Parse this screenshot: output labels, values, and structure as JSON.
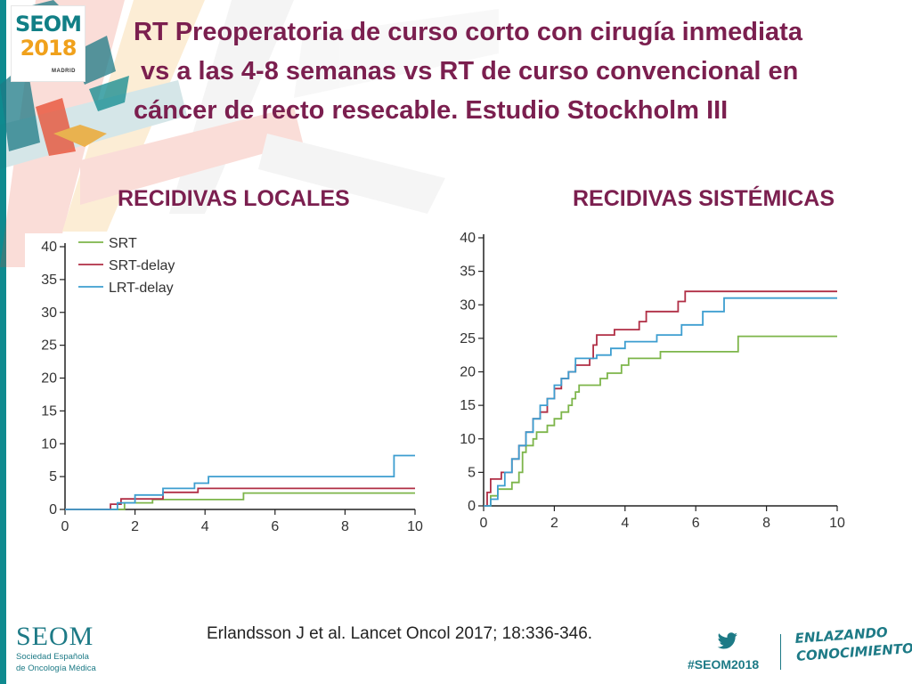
{
  "logo": {
    "name": "SEOM",
    "year": "2018",
    "city": "MADRID"
  },
  "title": {
    "line1": "RT Preoperatoria de curso corto con cirugía inmediata",
    "line2": " vs a las 4-8 semanas vs RT de curso convencional en",
    "line3": "cáncer de recto resecable. Estudio Stockholm III"
  },
  "headings": {
    "left": "RECIDIVAS LOCALES",
    "right": "RECIDIVAS SISTÉMICAS"
  },
  "colors": {
    "SRT": "#7db54a",
    "SRT-delay": "#b02e45",
    "LRT-delay": "#3d9ed0"
  },
  "chart_data": [
    {
      "type": "line",
      "title": "RECIDIVAS LOCALES",
      "xlabel": "",
      "ylabel": "",
      "xlim": [
        0,
        10
      ],
      "ylim": [
        0,
        40
      ],
      "x_ticks": [
        0,
        2,
        4,
        6,
        8,
        10
      ],
      "y_ticks": [
        0,
        5,
        10,
        15,
        20,
        25,
        30,
        35,
        40
      ],
      "legend": "top-left",
      "grid": false,
      "series": [
        {
          "name": "SRT",
          "color": "#7db54a",
          "points": [
            [
              0,
              0
            ],
            [
              1.7,
              0
            ],
            [
              1.7,
              1
            ],
            [
              2.5,
              1
            ],
            [
              2.5,
              1.5
            ],
            [
              5.1,
              1.5
            ],
            [
              5.1,
              2.5
            ],
            [
              10,
              2.5
            ]
          ]
        },
        {
          "name": "SRT-delay",
          "color": "#b02e45",
          "points": [
            [
              0,
              0
            ],
            [
              1.3,
              0
            ],
            [
              1.3,
              0.8
            ],
            [
              1.6,
              0.8
            ],
            [
              1.6,
              1.6
            ],
            [
              2.8,
              1.6
            ],
            [
              2.8,
              2.6
            ],
            [
              3.8,
              2.6
            ],
            [
              3.8,
              3.2
            ],
            [
              10,
              3.2
            ]
          ]
        },
        {
          "name": "LRT-delay",
          "color": "#3d9ed0",
          "points": [
            [
              0,
              0
            ],
            [
              1.5,
              0
            ],
            [
              1.5,
              1
            ],
            [
              2.0,
              1
            ],
            [
              2.0,
              2.2
            ],
            [
              2.8,
              2.2
            ],
            [
              2.8,
              3.2
            ],
            [
              3.7,
              3.2
            ],
            [
              3.7,
              4.0
            ],
            [
              4.1,
              4.0
            ],
            [
              4.1,
              5.0
            ],
            [
              9.4,
              5.0
            ],
            [
              9.4,
              8.2
            ],
            [
              10,
              8.2
            ]
          ]
        }
      ]
    },
    {
      "type": "line",
      "title": "RECIDIVAS SISTÉMICAS",
      "xlabel": "",
      "ylabel": "",
      "xlim": [
        0,
        10
      ],
      "ylim": [
        0,
        40
      ],
      "x_ticks": [
        0,
        2,
        4,
        6,
        8,
        10
      ],
      "y_ticks": [
        0,
        5,
        10,
        15,
        20,
        25,
        30,
        35,
        40
      ],
      "grid": false,
      "series": [
        {
          "name": "SRT",
          "color": "#7db54a",
          "points": [
            [
              0,
              0
            ],
            [
              0.2,
              0
            ],
            [
              0.2,
              1.5
            ],
            [
              0.4,
              1.5
            ],
            [
              0.4,
              2.5
            ],
            [
              0.8,
              2.5
            ],
            [
              0.8,
              3.5
            ],
            [
              1.0,
              3.5
            ],
            [
              1.0,
              5
            ],
            [
              1.1,
              5
            ],
            [
              1.1,
              8
            ],
            [
              1.2,
              8
            ],
            [
              1.2,
              9
            ],
            [
              1.4,
              9
            ],
            [
              1.4,
              10
            ],
            [
              1.5,
              10
            ],
            [
              1.5,
              11
            ],
            [
              1.8,
              11
            ],
            [
              1.8,
              12
            ],
            [
              2.0,
              12
            ],
            [
              2.0,
              13
            ],
            [
              2.2,
              13
            ],
            [
              2.2,
              14
            ],
            [
              2.4,
              14
            ],
            [
              2.4,
              15
            ],
            [
              2.5,
              15
            ],
            [
              2.5,
              16
            ],
            [
              2.6,
              16
            ],
            [
              2.6,
              17
            ],
            [
              2.7,
              17
            ],
            [
              2.7,
              18
            ],
            [
              3.3,
              18
            ],
            [
              3.3,
              19
            ],
            [
              3.5,
              19
            ],
            [
              3.5,
              19.8
            ],
            [
              3.9,
              19.8
            ],
            [
              3.9,
              21
            ],
            [
              4.1,
              21
            ],
            [
              4.1,
              22
            ],
            [
              5.0,
              22
            ],
            [
              5.0,
              23
            ],
            [
              7.2,
              23
            ],
            [
              7.2,
              25.3
            ],
            [
              10,
              25.3
            ]
          ]
        },
        {
          "name": "SRT-delay",
          "color": "#b02e45",
          "points": [
            [
              0,
              0
            ],
            [
              0.1,
              0
            ],
            [
              0.1,
              2
            ],
            [
              0.2,
              2
            ],
            [
              0.2,
              4
            ],
            [
              0.5,
              4
            ],
            [
              0.5,
              5
            ],
            [
              0.8,
              5
            ],
            [
              0.8,
              7
            ],
            [
              1.0,
              7
            ],
            [
              1.0,
              9
            ],
            [
              1.2,
              9
            ],
            [
              1.2,
              11
            ],
            [
              1.4,
              11
            ],
            [
              1.4,
              13
            ],
            [
              1.6,
              13
            ],
            [
              1.6,
              14
            ],
            [
              1.8,
              14
            ],
            [
              1.8,
              16
            ],
            [
              2.0,
              16
            ],
            [
              2.0,
              17.5
            ],
            [
              2.2,
              17.5
            ],
            [
              2.2,
              19
            ],
            [
              2.4,
              19
            ],
            [
              2.4,
              20
            ],
            [
              2.6,
              20
            ],
            [
              2.6,
              21
            ],
            [
              3.0,
              21
            ],
            [
              3.0,
              22
            ],
            [
              3.1,
              22
            ],
            [
              3.1,
              24
            ],
            [
              3.2,
              24
            ],
            [
              3.2,
              25.5
            ],
            [
              3.7,
              25.5
            ],
            [
              3.7,
              26.3
            ],
            [
              4.4,
              26.3
            ],
            [
              4.4,
              27.5
            ],
            [
              4.6,
              27.5
            ],
            [
              4.6,
              29
            ],
            [
              5.5,
              29
            ],
            [
              5.5,
              30.5
            ],
            [
              5.7,
              30.5
            ],
            [
              5.7,
              32
            ],
            [
              10,
              32
            ]
          ]
        },
        {
          "name": "LRT-delay",
          "color": "#3d9ed0",
          "points": [
            [
              0,
              0
            ],
            [
              0.2,
              0
            ],
            [
              0.2,
              1
            ],
            [
              0.4,
              1
            ],
            [
              0.4,
              3
            ],
            [
              0.6,
              3
            ],
            [
              0.6,
              5
            ],
            [
              0.8,
              5
            ],
            [
              0.8,
              7
            ],
            [
              1.0,
              7
            ],
            [
              1.0,
              9
            ],
            [
              1.2,
              9
            ],
            [
              1.2,
              11
            ],
            [
              1.4,
              11
            ],
            [
              1.4,
              13
            ],
            [
              1.6,
              13
            ],
            [
              1.6,
              15
            ],
            [
              1.8,
              15
            ],
            [
              1.8,
              16
            ],
            [
              2.0,
              16
            ],
            [
              2.0,
              18
            ],
            [
              2.2,
              18
            ],
            [
              2.2,
              19
            ],
            [
              2.4,
              19
            ],
            [
              2.4,
              20
            ],
            [
              2.6,
              20
            ],
            [
              2.6,
              22
            ],
            [
              3.2,
              22
            ],
            [
              3.2,
              22.5
            ],
            [
              3.6,
              22.5
            ],
            [
              3.6,
              23.5
            ],
            [
              4.0,
              23.5
            ],
            [
              4.0,
              24.5
            ],
            [
              4.9,
              24.5
            ],
            [
              4.9,
              25.5
            ],
            [
              5.6,
              25.5
            ],
            [
              5.6,
              27
            ],
            [
              6.2,
              27
            ],
            [
              6.2,
              29
            ],
            [
              6.8,
              29
            ],
            [
              6.8,
              31
            ],
            [
              10,
              31
            ]
          ]
        }
      ]
    }
  ],
  "citation": "Erlandsson J et al. Lancet Oncol 2017; 18:336-346.",
  "footer": {
    "seom": "SEOM",
    "sub1": "Sociedad Española",
    "sub2": "de Oncología Médica",
    "hashtag": "#SEOM2018",
    "slogan1": "ENLAZANDO",
    "slogan2": "CONOCIMIENTO"
  }
}
